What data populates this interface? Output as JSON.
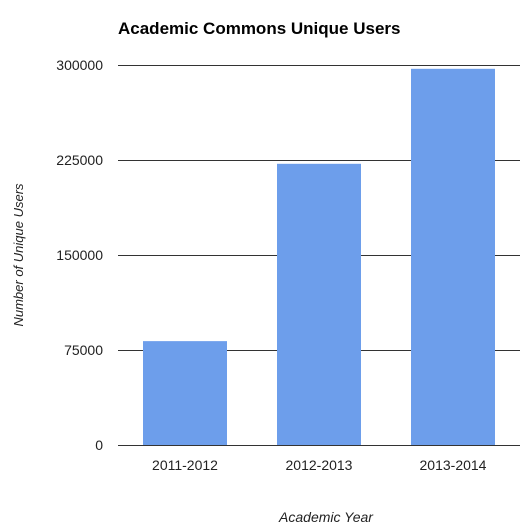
{
  "chart_data": {
    "type": "bar",
    "title": "Academic Commons Unique Users",
    "xlabel": "Academic Year",
    "ylabel": "Number of Unique Users",
    "categories": [
      "2011-2012",
      "2012-2013",
      "2013-2014"
    ],
    "values": [
      82000,
      222000,
      297000
    ],
    "ylim": [
      0,
      300000
    ],
    "yticks": [
      "0",
      "75000",
      "150000",
      "225000",
      "300000"
    ],
    "ytick_values": [
      0,
      75000,
      150000,
      225000,
      300000
    ],
    "grid": true,
    "legend": "none",
    "colors": {
      "bar": "#6d9eeb",
      "grid": "#333333",
      "title": "#000000",
      "tick_label": "#222222",
      "axis_label": "#222222"
    }
  }
}
